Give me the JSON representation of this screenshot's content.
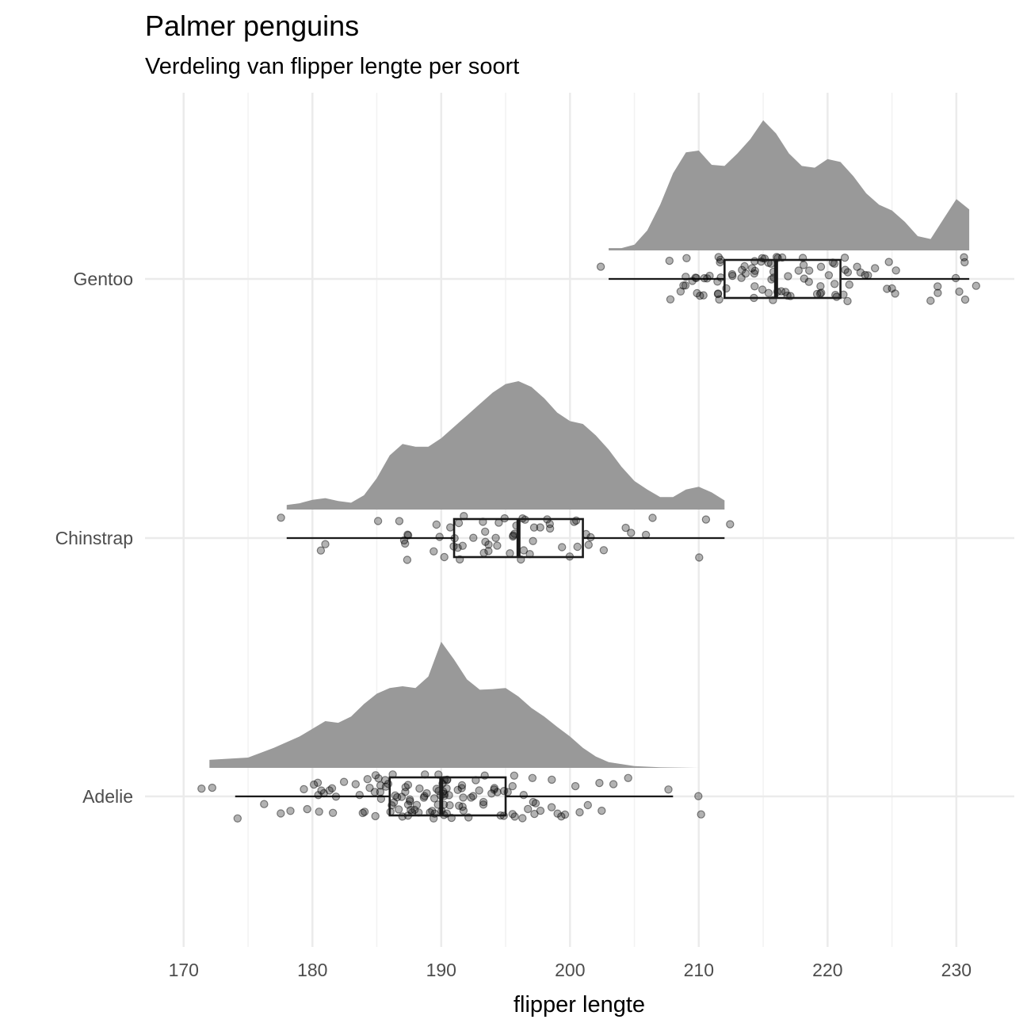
{
  "chart_data": {
    "type": "raincloud",
    "title": "Palmer penguins",
    "subtitle": "Verdeling van flipper lengte per soort",
    "xlabel": "flipper lengte",
    "ylabel": "",
    "xlim": [
      167,
      234.5
    ],
    "x_ticks": [
      170,
      180,
      190,
      200,
      210,
      220,
      230
    ],
    "x_minor_ticks": [
      175,
      185,
      195,
      205,
      215,
      225
    ],
    "grid": true,
    "legend": "none",
    "categories": [
      "Adelie",
      "Chinstrap",
      "Gentoo"
    ],
    "colors": {
      "density": "#999999",
      "point": "#000000",
      "grid": "#ebebeb",
      "box": "#1a1a1a"
    },
    "series": [
      {
        "name": "Adelie",
        "range": [
          172,
          210
        ],
        "boxplot": {
          "whisker_low": 174,
          "q1": 186,
          "median": 190,
          "q3": 195,
          "whisker_high": 208
        },
        "outliers": [
          172,
          210
        ],
        "density": [
          [
            172,
            0.14
          ],
          [
            175,
            0.18
          ],
          [
            177,
            0.35
          ],
          [
            179,
            0.55
          ],
          [
            181,
            0.82
          ],
          [
            182,
            0.79
          ],
          [
            183,
            0.9
          ],
          [
            184,
            1.12
          ],
          [
            185,
            1.3
          ],
          [
            186,
            1.4
          ],
          [
            187,
            1.43
          ],
          [
            188,
            1.4
          ],
          [
            189,
            1.6
          ],
          [
            190,
            2.21
          ],
          [
            191,
            1.9
          ],
          [
            192,
            1.55
          ],
          [
            193,
            1.37
          ],
          [
            194,
            1.38
          ],
          [
            195,
            1.4
          ],
          [
            196,
            1.25
          ],
          [
            197,
            1.05
          ],
          [
            198,
            0.9
          ],
          [
            199,
            0.72
          ],
          [
            200,
            0.55
          ],
          [
            201,
            0.35
          ],
          [
            202,
            0.2
          ],
          [
            203,
            0.1
          ],
          [
            205,
            0.03
          ],
          [
            207,
            0.01
          ],
          [
            210,
            0.0
          ]
        ],
        "points": [
          172,
          174,
          176,
          178,
          178,
          179,
          180,
          180,
          180,
          180,
          181,
          181,
          181,
          181,
          181,
          182,
          182,
          182,
          183,
          183,
          184,
          184,
          184,
          184,
          185,
          185,
          185,
          185,
          185,
          185,
          186,
          186,
          186,
          186,
          186,
          186,
          186,
          186,
          187,
          187,
          187,
          187,
          187,
          187,
          187,
          187,
          187,
          188,
          188,
          188,
          188,
          188,
          188,
          188,
          188,
          188,
          189,
          189,
          189,
          189,
          189,
          189,
          189,
          190,
          190,
          190,
          190,
          190,
          190,
          190,
          190,
          190,
          190,
          190,
          190,
          190,
          190,
          190,
          190,
          190,
          191,
          191,
          191,
          191,
          191,
          191,
          191,
          191,
          192,
          192,
          192,
          192,
          192,
          192,
          193,
          193,
          193,
          193,
          193,
          193,
          194,
          194,
          194,
          194,
          195,
          195,
          195,
          195,
          195,
          195,
          196,
          196,
          196,
          196,
          197,
          197,
          197,
          197,
          198,
          198,
          198,
          199,
          199,
          199,
          200,
          200,
          201,
          201,
          202,
          202,
          203,
          205,
          208,
          210
        ]
      },
      {
        "name": "Chinstrap",
        "range": [
          178,
          212
        ],
        "boxplot": {
          "whisker_low": 178,
          "q1": 191,
          "median": 196,
          "q3": 201,
          "whisker_high": 212
        },
        "outliers": [],
        "density": [
          [
            178,
            0.08
          ],
          [
            179,
            0.11
          ],
          [
            180,
            0.17
          ],
          [
            181,
            0.2
          ],
          [
            182,
            0.15
          ],
          [
            183,
            0.12
          ],
          [
            184,
            0.25
          ],
          [
            185,
            0.55
          ],
          [
            186,
            0.95
          ],
          [
            187,
            1.15
          ],
          [
            188,
            1.1
          ],
          [
            189,
            1.1
          ],
          [
            190,
            1.25
          ],
          [
            191,
            1.45
          ],
          [
            192,
            1.65
          ],
          [
            193,
            1.85
          ],
          [
            194,
            2.05
          ],
          [
            195,
            2.2
          ],
          [
            196,
            2.25
          ],
          [
            197,
            2.15
          ],
          [
            198,
            1.95
          ],
          [
            199,
            1.7
          ],
          [
            200,
            1.55
          ],
          [
            201,
            1.5
          ],
          [
            202,
            1.3
          ],
          [
            203,
            1.05
          ],
          [
            204,
            0.75
          ],
          [
            205,
            0.5
          ],
          [
            206,
            0.35
          ],
          [
            207,
            0.22
          ],
          [
            208,
            0.22
          ],
          [
            209,
            0.35
          ],
          [
            210,
            0.4
          ],
          [
            211,
            0.3
          ],
          [
            212,
            0.16
          ]
        ],
        "points": [
          178,
          181,
          181,
          185,
          187,
          187,
          187,
          187,
          187,
          188,
          189,
          190,
          190,
          190,
          191,
          191,
          191,
          191,
          191,
          192,
          192,
          192,
          192,
          193,
          193,
          193,
          193,
          193,
          193,
          194,
          195,
          195,
          195,
          195,
          195,
          195,
          196,
          196,
          196,
          196,
          196,
          197,
          197,
          197,
          197,
          198,
          198,
          199,
          199,
          200,
          200,
          200,
          201,
          201,
          201,
          201,
          202,
          203,
          205,
          205,
          206,
          207,
          210,
          210,
          212
        ]
      },
      {
        "name": "Gentoo",
        "range": [
          203,
          231
        ],
        "boxplot": {
          "whisker_low": 203,
          "q1": 212,
          "median": 216,
          "q3": 221,
          "whisker_high": 231
        },
        "outliers": [],
        "density": [
          [
            203,
            0.04
          ],
          [
            204,
            0.04
          ],
          [
            205,
            0.1
          ],
          [
            206,
            0.35
          ],
          [
            207,
            0.8
          ],
          [
            208,
            1.35
          ],
          [
            209,
            1.72
          ],
          [
            210,
            1.75
          ],
          [
            211,
            1.5
          ],
          [
            212,
            1.48
          ],
          [
            213,
            1.7
          ],
          [
            214,
            1.95
          ],
          [
            215,
            2.28
          ],
          [
            216,
            2.05
          ],
          [
            217,
            1.7
          ],
          [
            218,
            1.48
          ],
          [
            219,
            1.45
          ],
          [
            220,
            1.6
          ],
          [
            221,
            1.55
          ],
          [
            222,
            1.3
          ],
          [
            223,
            1.0
          ],
          [
            224,
            0.8
          ],
          [
            225,
            0.7
          ],
          [
            226,
            0.5
          ],
          [
            227,
            0.25
          ],
          [
            228,
            0.2
          ],
          [
            229,
            0.55
          ],
          [
            230,
            0.9
          ],
          [
            231,
            0.72
          ]
        ],
        "points": [
          203,
          208,
          208,
          208,
          209,
          209,
          209,
          209,
          210,
          210,
          210,
          210,
          210,
          210,
          210,
          210,
          211,
          211,
          211,
          211,
          212,
          212,
          212,
          212,
          212,
          212,
          213,
          213,
          213,
          213,
          213,
          213,
          214,
          214,
          214,
          214,
          214,
          215,
          215,
          215,
          215,
          215,
          215,
          215,
          215,
          216,
          216,
          216,
          216,
          216,
          216,
          216,
          216,
          217,
          217,
          217,
          217,
          217,
          218,
          218,
          218,
          218,
          218,
          219,
          219,
          219,
          219,
          220,
          220,
          220,
          220,
          220,
          221,
          221,
          221,
          221,
          221,
          221,
          221,
          222,
          222,
          222,
          222,
          223,
          223,
          224,
          224,
          225,
          225,
          225,
          226,
          228,
          228,
          229,
          230,
          230,
          230,
          230,
          230,
          231
        ]
      }
    ]
  }
}
